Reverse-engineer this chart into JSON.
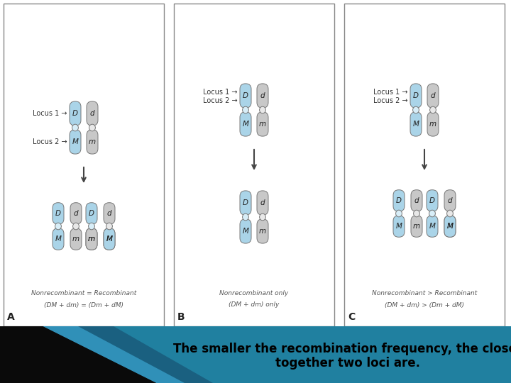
{
  "background_color": "#ffffff",
  "caption_text_line1": "The smaller the recombination frequency, the closer",
  "caption_text_line2": "together two loci are.",
  "caption_color": "#000000",
  "caption_fontsize": 12,
  "panel_labels": [
    "A",
    "B",
    "C"
  ],
  "blue_color": "#aad4e8",
  "blue_top_color": "#aad4e8",
  "gray_color": "#c8c8c8",
  "centromere_color": "#d0e8f4",
  "centromere_gray_color": "#e0e0e0",
  "edge_color": "#888888",
  "text_color": "#333333",
  "nonrec_labels": [
    [
      "Nonrecombinant = Recombinant",
      "(DM + dm) = (Dm + dM)"
    ],
    [
      "Nonrecombinant only",
      "(DM + dm) only"
    ],
    [
      "Nonrecombinant > Recombinant",
      "(DM + dm) > (Dm + dM)"
    ]
  ],
  "bottom_colors": [
    "#1a5f7a",
    "#2980a0",
    "#111111"
  ]
}
